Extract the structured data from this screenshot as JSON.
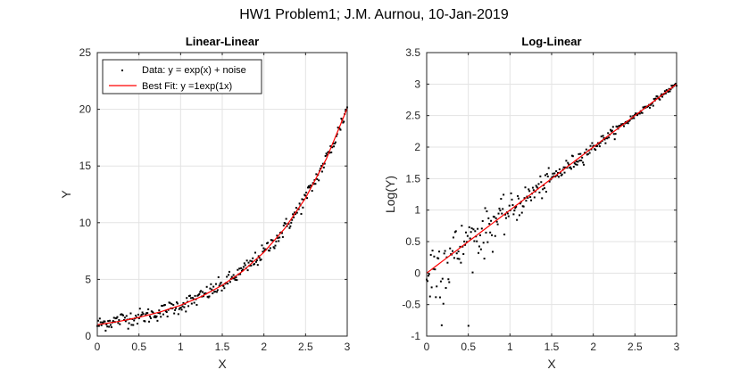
{
  "figure": {
    "suptitle": "HW1 Problem1; J.M. Aurnou, 10-Jan-2019"
  },
  "chart_data": [
    {
      "type": "scatter",
      "title": "Linear-Linear",
      "xlabel": "X",
      "ylabel": "Y",
      "xlim": [
        0,
        3
      ],
      "ylim": [
        0,
        25
      ],
      "xticks": [
        "0",
        "0.5",
        "1",
        "1.5",
        "2",
        "2.5",
        "3"
      ],
      "yticks": [
        "0",
        "5",
        "10",
        "15",
        "20",
        "25"
      ],
      "grid": true,
      "legend_position": "top-left",
      "series": [
        {
          "name": "Data: y = exp(x) + noise",
          "kind": "scatter",
          "color": "#000000",
          "x": [
            0,
            0.1,
            0.2,
            0.3,
            0.4,
            0.5,
            0.6,
            0.7,
            0.8,
            0.9,
            1.0,
            1.1,
            1.2,
            1.3,
            1.4,
            1.5,
            1.6,
            1.7,
            1.8,
            1.9,
            2.0,
            2.1,
            2.2,
            2.3,
            2.4,
            2.5,
            2.6,
            2.7,
            2.8,
            2.9,
            3.0
          ],
          "y": [
            1.0,
            1.2,
            1.3,
            1.5,
            1.6,
            1.7,
            1.8,
            2.0,
            2.2,
            2.5,
            2.7,
            3.0,
            3.3,
            3.7,
            4.1,
            4.5,
            5.0,
            5.5,
            6.1,
            6.7,
            7.4,
            8.2,
            9.0,
            10.0,
            11.0,
            12.2,
            13.5,
            14.9,
            16.4,
            18.2,
            20.1
          ]
        },
        {
          "name": "Best Fit: y =1exp(1x)",
          "kind": "line",
          "color": "#ff0000",
          "x": [
            0,
            0.25,
            0.5,
            0.75,
            1.0,
            1.25,
            1.5,
            1.75,
            2.0,
            2.25,
            2.5,
            2.75,
            3.0
          ],
          "y": [
            1.0,
            1.28,
            1.65,
            2.12,
            2.72,
            3.49,
            4.48,
            5.75,
            7.39,
            9.49,
            12.18,
            15.64,
            20.09
          ]
        }
      ]
    },
    {
      "type": "scatter",
      "title": "Log-Linear",
      "xlabel": "X",
      "ylabel": "Log(Y)",
      "xlim": [
        0,
        3
      ],
      "ylim": [
        -1,
        3.5
      ],
      "xticks": [
        "0",
        "0.5",
        "1",
        "1.5",
        "2",
        "2.5",
        "3"
      ],
      "yticks": [
        "-1",
        "-0.5",
        "0",
        "0.5",
        "1",
        "1.5",
        "2",
        "2.5",
        "3",
        "3.5"
      ],
      "grid": true,
      "series": [
        {
          "kind": "scatter",
          "color": "#000000",
          "x": [
            0,
            0.1,
            0.2,
            0.3,
            0.4,
            0.5,
            0.6,
            0.7,
            0.8,
            0.9,
            1.0,
            1.1,
            1.2,
            1.3,
            1.4,
            1.5,
            1.6,
            1.7,
            1.8,
            1.9,
            2.0,
            2.1,
            2.2,
            2.3,
            2.4,
            2.5,
            2.6,
            2.7,
            2.8,
            2.9,
            3.0
          ],
          "y": [
            0.0,
            0.15,
            0.25,
            0.35,
            0.45,
            0.52,
            0.6,
            0.7,
            0.8,
            0.9,
            1.0,
            1.1,
            1.2,
            1.3,
            1.4,
            1.5,
            1.6,
            1.7,
            1.8,
            1.9,
            2.0,
            2.1,
            2.2,
            2.3,
            2.4,
            2.5,
            2.6,
            2.7,
            2.8,
            2.9,
            3.0
          ]
        },
        {
          "kind": "line",
          "color": "#ff0000",
          "x": [
            0,
            3
          ],
          "y": [
            0,
            3
          ]
        }
      ]
    }
  ]
}
